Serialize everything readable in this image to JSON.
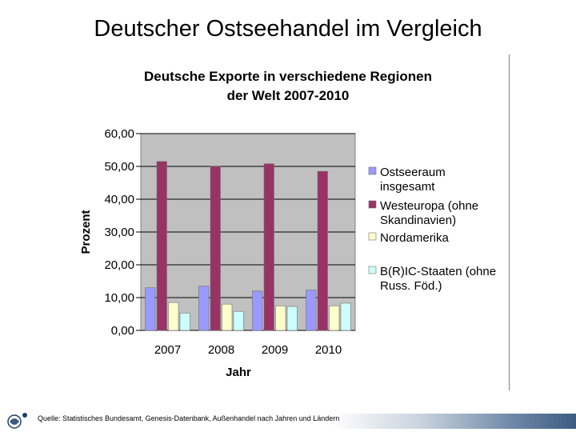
{
  "slide_title": "Deutscher Ostseehandel im Vergleich",
  "source_note": "Quelle: Statistisches Bundesamt, Genesis-Datenbank, Außenhandel nach Jahren und Ländern",
  "chart_data": {
    "type": "bar",
    "title_line1": "Deutsche Exporte in verschiedene Regionen",
    "title_line2": "der Welt 2007-2010",
    "xlabel": "Jahr",
    "ylabel": "Prozent",
    "ylim": [
      0,
      60
    ],
    "yticks": [
      "0,00",
      "10,00",
      "20,00",
      "30,00",
      "40,00",
      "50,00",
      "60,00"
    ],
    "grid": "horizontal",
    "legend_position": "right",
    "categories": [
      "2007",
      "2008",
      "2009",
      "2010"
    ],
    "series": [
      {
        "name_line1": "Ostseeraum",
        "name_line2": "insgesamt",
        "color": "#9999ff",
        "values": [
          13.0,
          13.5,
          12.0,
          12.3
        ]
      },
      {
        "name_line1": "Westeuropa (ohne",
        "name_line2": "Skandinavien)",
        "color": "#993366",
        "values": [
          51.5,
          50.0,
          50.8,
          48.5
        ]
      },
      {
        "name_line1": "Nordamerika",
        "name_line2": "",
        "color": "#ffffcc",
        "values": [
          8.5,
          8.0,
          7.5,
          7.5
        ]
      },
      {
        "name_line1": "B(R)IC-Staaten (ohne",
        "name_line2": "Russ. Föd.)",
        "color": "#ccffff",
        "values": [
          5.3,
          5.8,
          7.3,
          8.3
        ]
      }
    ]
  }
}
